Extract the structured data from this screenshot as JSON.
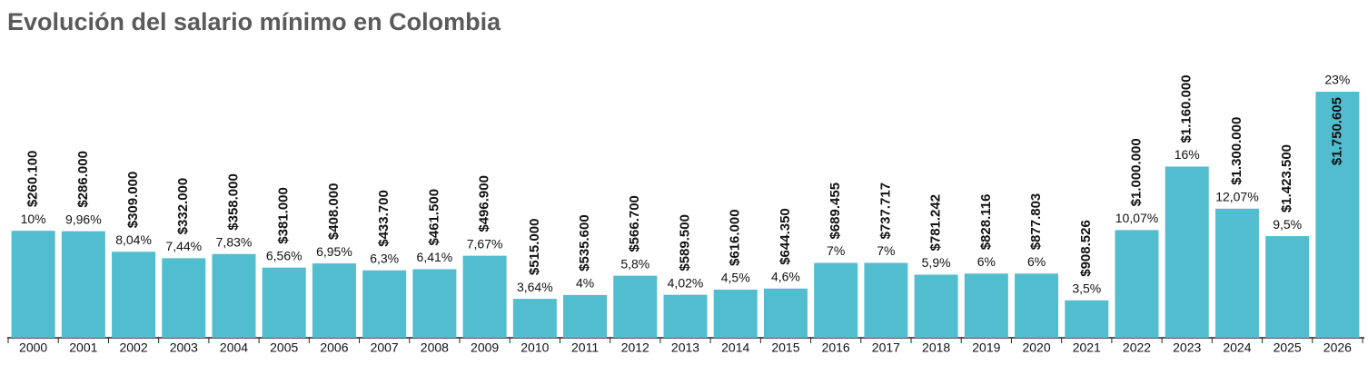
{
  "chart_data": {
    "type": "bar",
    "title": "Evolución del salario mínimo en Colombia",
    "categories": [
      "2000",
      "2001",
      "2002",
      "2003",
      "2004",
      "2005",
      "2006",
      "2007",
      "2008",
      "2009",
      "2010",
      "2011",
      "2012",
      "2013",
      "2014",
      "2015",
      "2016",
      "2017",
      "2018",
      "2019",
      "2020",
      "2021",
      "2022",
      "2023",
      "2024",
      "2025",
      "2026"
    ],
    "values": [
      10,
      9.96,
      8.04,
      7.44,
      7.83,
      6.56,
      6.95,
      6.3,
      6.41,
      7.67,
      3.64,
      4,
      5.8,
      4.02,
      4.5,
      4.6,
      7,
      7,
      5.9,
      6,
      6,
      3.5,
      10.07,
      16,
      12.07,
      9.5,
      23
    ],
    "value_labels": [
      "10%",
      "9,96%",
      "8,04%",
      "7,44%",
      "7,83%",
      "6,56%",
      "6,95%",
      "6,3%",
      "6,41%",
      "7,67%",
      "3,64%",
      "4%",
      "5,8%",
      "4,02%",
      "4,5%",
      "4,6%",
      "7%",
      "7%",
      "5,9%",
      "6%",
      "6%",
      "3,5%",
      "10,07%",
      "16%",
      "12,07%",
      "9,5%",
      "23%"
    ],
    "salary_labels": [
      "$260.100",
      "$286.000",
      "$309.000",
      "$332.000",
      "$358.000",
      "$381.000",
      "$408.000",
      "$433.700",
      "$461.500",
      "$496.900",
      "$515.000",
      "$535.600",
      "$566.700",
      "$589.500",
      "$616.000",
      "$644.350",
      "$689.455",
      "$737.717",
      "$781.242",
      "$828.116",
      "$877.803",
      "$908.526",
      "$1.000.000",
      "$1.160.000",
      "$1.300.000",
      "$1.423.500",
      "$1.750.605"
    ],
    "color": "#52bdce",
    "ylim": [
      0,
      23
    ]
  }
}
